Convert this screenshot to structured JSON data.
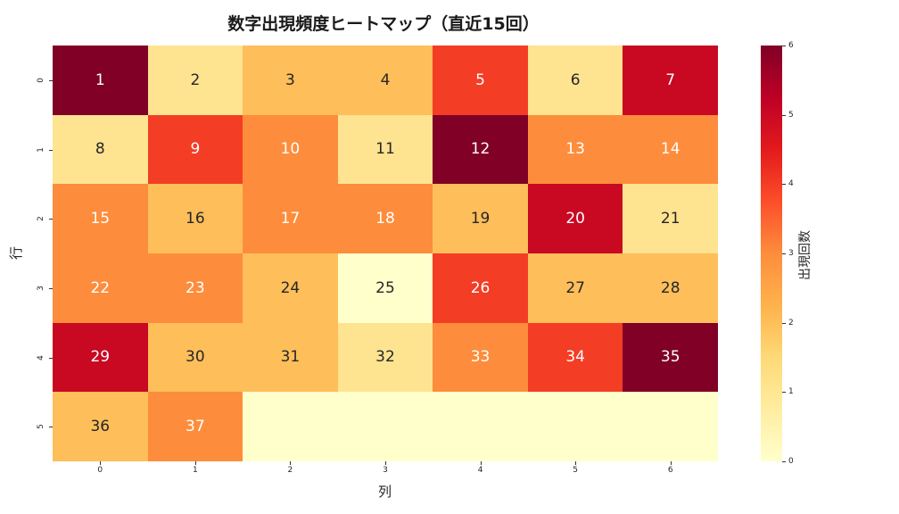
{
  "title": "数字出現頻度ヒートマップ（直近15回）",
  "chart_data": {
    "type": "heatmap",
    "title": "数字出現頻度ヒートマップ（直近15回）",
    "xlabel": "列",
    "ylabel": "行",
    "x_ticks": [
      "0",
      "1",
      "2",
      "3",
      "4",
      "5",
      "6"
    ],
    "y_ticks": [
      "0",
      "1",
      "2",
      "3",
      "4",
      "5"
    ],
    "colormap": "YlOrRd",
    "colorbar": {
      "label": "出現回数",
      "range": [
        0,
        6
      ],
      "ticks": [
        "0",
        "1",
        "2",
        "3",
        "4",
        "5",
        "6"
      ]
    },
    "annotations": [
      [
        "1",
        "2",
        "3",
        "4",
        "5",
        "6",
        "7"
      ],
      [
        "8",
        "9",
        "10",
        "11",
        "12",
        "13",
        "14"
      ],
      [
        "15",
        "16",
        "17",
        "18",
        "19",
        "20",
        "21"
      ],
      [
        "22",
        "23",
        "24",
        "25",
        "26",
        "27",
        "28"
      ],
      [
        "29",
        "30",
        "31",
        "32",
        "33",
        "34",
        "35"
      ],
      [
        "36",
        "37",
        "",
        "",
        "",
        "",
        ""
      ]
    ],
    "values": [
      [
        6,
        1,
        2,
        2,
        4,
        1,
        5
      ],
      [
        1,
        4,
        3,
        1,
        6,
        3,
        3
      ],
      [
        3,
        2,
        3,
        3,
        2,
        5,
        1
      ],
      [
        3,
        3,
        2,
        0,
        4,
        2,
        2
      ],
      [
        5,
        2,
        2,
        1,
        3,
        4,
        6
      ],
      [
        2,
        3,
        0,
        0,
        0,
        0,
        0
      ]
    ]
  },
  "colors": {
    "0": "#ffffcc",
    "1": "#fee391",
    "2": "#febe5a",
    "3": "#fd8d3c",
    "4": "#f43d25",
    "5": "#c90822",
    "6": "#800026"
  }
}
